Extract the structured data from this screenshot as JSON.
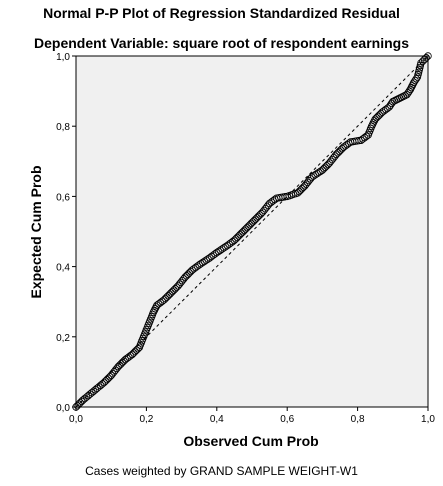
{
  "title": "Normal P-P Plot of Regression Standardized Residual",
  "subtitle": "Dependent Variable: square root of respondent earnings",
  "footnote": "Cases weighted by GRAND SAMPLE WEIGHT-W1",
  "chart_data": {
    "type": "scatter",
    "title": "Normal P-P Plot of Regression Standardized Residual",
    "subtitle": "Dependent Variable: square root of respondent earnings",
    "xlabel": "Observed Cum Prob",
    "ylabel": "Expected Cum Prob",
    "xlim": [
      0,
      1
    ],
    "ylim": [
      0,
      1
    ],
    "xticks": [
      "0,0",
      "0,2",
      "0,4",
      "0,6",
      "0,8",
      "1,0"
    ],
    "yticks": [
      "0,0",
      "0,2",
      "0,4",
      "0,6",
      "0,8",
      "1,0"
    ],
    "grid": false,
    "reference_line": {
      "from": [
        0,
        0
      ],
      "to": [
        1,
        1
      ],
      "style": "dashed"
    },
    "curve": [
      [
        0.0,
        0.0
      ],
      [
        0.02,
        0.02
      ],
      [
        0.05,
        0.045
      ],
      [
        0.08,
        0.07
      ],
      [
        0.1,
        0.09
      ],
      [
        0.12,
        0.115
      ],
      [
        0.14,
        0.135
      ],
      [
        0.16,
        0.15
      ],
      [
        0.18,
        0.17
      ],
      [
        0.19,
        0.195
      ],
      [
        0.2,
        0.22
      ],
      [
        0.21,
        0.245
      ],
      [
        0.22,
        0.27
      ],
      [
        0.23,
        0.29
      ],
      [
        0.25,
        0.305
      ],
      [
        0.27,
        0.325
      ],
      [
        0.29,
        0.345
      ],
      [
        0.31,
        0.37
      ],
      [
        0.33,
        0.39
      ],
      [
        0.35,
        0.405
      ],
      [
        0.38,
        0.425
      ],
      [
        0.4,
        0.44
      ],
      [
        0.43,
        0.46
      ],
      [
        0.45,
        0.475
      ],
      [
        0.47,
        0.495
      ],
      [
        0.49,
        0.515
      ],
      [
        0.51,
        0.535
      ],
      [
        0.53,
        0.555
      ],
      [
        0.55,
        0.58
      ],
      [
        0.57,
        0.595
      ],
      [
        0.6,
        0.6
      ],
      [
        0.63,
        0.61
      ],
      [
        0.65,
        0.63
      ],
      [
        0.67,
        0.655
      ],
      [
        0.7,
        0.675
      ],
      [
        0.72,
        0.695
      ],
      [
        0.74,
        0.72
      ],
      [
        0.76,
        0.74
      ],
      [
        0.78,
        0.755
      ],
      [
        0.81,
        0.76
      ],
      [
        0.83,
        0.775
      ],
      [
        0.84,
        0.8
      ],
      [
        0.85,
        0.82
      ],
      [
        0.87,
        0.84
      ],
      [
        0.89,
        0.855
      ],
      [
        0.9,
        0.87
      ],
      [
        0.92,
        0.88
      ],
      [
        0.94,
        0.89
      ],
      [
        0.95,
        0.905
      ],
      [
        0.96,
        0.925
      ],
      [
        0.97,
        0.94
      ],
      [
        0.975,
        0.96
      ],
      [
        0.98,
        0.98
      ],
      [
        0.99,
        0.99
      ],
      [
        1.0,
        1.0
      ]
    ]
  }
}
